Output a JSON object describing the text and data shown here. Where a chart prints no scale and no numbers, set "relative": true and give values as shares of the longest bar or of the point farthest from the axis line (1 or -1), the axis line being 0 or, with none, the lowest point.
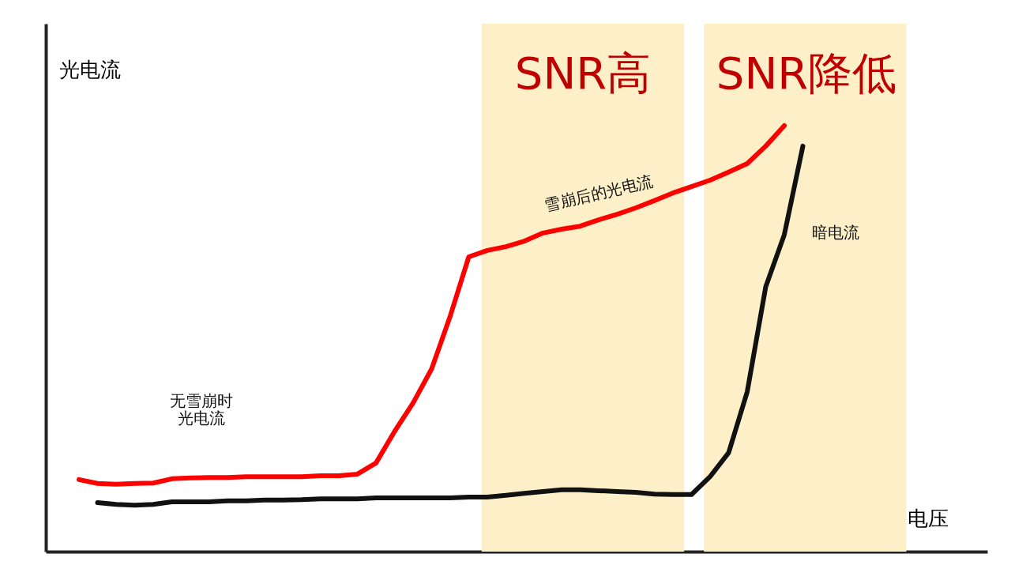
{
  "chart_data": {
    "type": "line",
    "relative": true,
    "xlabel": "电压",
    "ylabel": "光电流",
    "tick_labels": false,
    "line_style": "solid",
    "categories": [
      null,
      null,
      null,
      null,
      null,
      null,
      null,
      null,
      null,
      null,
      null,
      null,
      null,
      null,
      null,
      null,
      null,
      null,
      null,
      null,
      null,
      null,
      null,
      null,
      null,
      null,
      null,
      null,
      null,
      null,
      null,
      null,
      null,
      null,
      null,
      null,
      null,
      null,
      null,
      null
    ],
    "series": [
      {
        "color": "#ff0000",
        "values": [
          0.169,
          0.16,
          0.158,
          0.16,
          0.161,
          0.171,
          0.173,
          0.174,
          0.174,
          0.176,
          0.176,
          0.176,
          0.176,
          0.178,
          0.178,
          0.182,
          0.208,
          0.282,
          0.349,
          0.429,
          0.553,
          0.692,
          0.707,
          0.716,
          0.729,
          0.748,
          0.757,
          0.764,
          0.779,
          0.792,
          0.807,
          0.824,
          0.842,
          0.857,
          0.872,
          0.891,
          0.911,
          0.952,
          1,
          null
        ]
      },
      {
        "color": "#111111",
        "values": [
          null,
          0.115,
          0.111,
          0.109,
          0.111,
          0.117,
          0.117,
          0.117,
          0.119,
          0.119,
          0.121,
          0.121,
          0.122,
          0.124,
          0.124,
          0.124,
          0.126,
          0.126,
          0.126,
          0.126,
          0.126,
          0.128,
          0.128,
          0.132,
          0.137,
          0.141,
          0.145,
          0.145,
          0.143,
          0.141,
          0.139,
          0.135,
          0.134,
          0.134,
          0.176,
          0.232,
          0.375,
          0.622,
          0.744,
          0.952
        ]
      }
    ],
    "annotations": [
      "雪崩后的光电流",
      "无雪崩时光电流",
      "暗电流",
      "SNR高",
      "SNR降低"
    ]
  }
}
